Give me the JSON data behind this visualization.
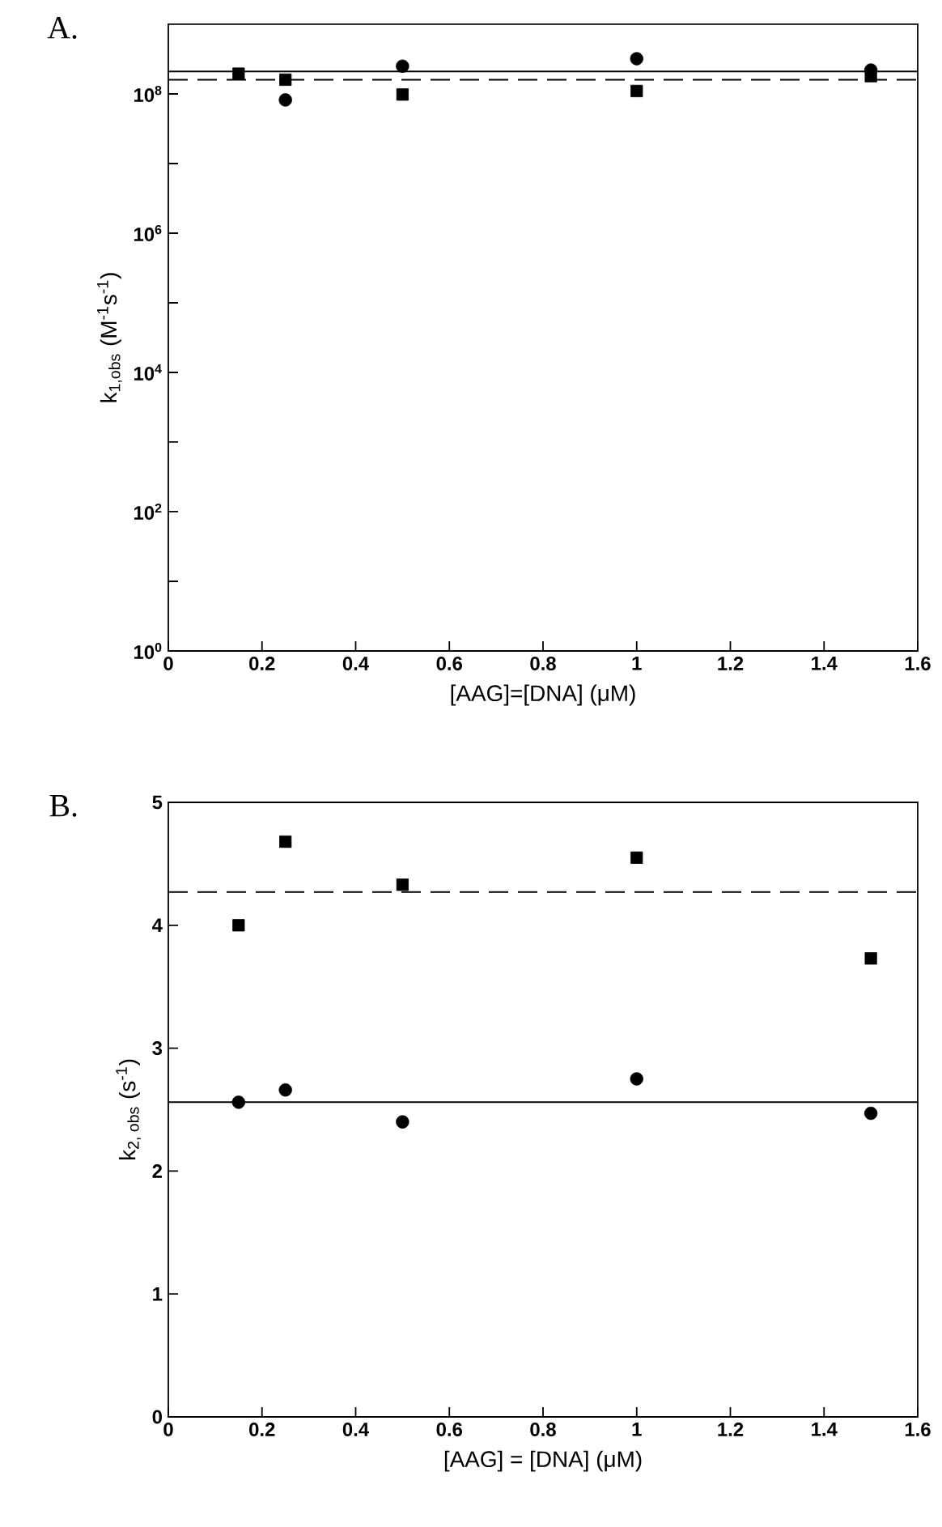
{
  "chart_data": [
    {
      "type": "scatter",
      "title": "A.",
      "xlabel": "[AAG]=[DNA] (μM)",
      "ylabel": "k$_{1,obs}$ (M$^{-1}$s$^{-1}$)",
      "log": "y",
      "xlim": [
        0,
        1.6
      ],
      "xticks": [
        0,
        0.2,
        0.4,
        0.6,
        0.8,
        1,
        1.2,
        1.4,
        1.6
      ],
      "ylim": [
        1,
        1000000000
      ],
      "yticks": [
        {
          "value": 1,
          "label": "10$^{0}$"
        },
        {
          "value": 10,
          "label": null
        },
        {
          "value": 100,
          "label": "10$^{2}$"
        },
        {
          "value": 1000,
          "label": null
        },
        {
          "value": 10000,
          "label": "10$^{4}$"
        },
        {
          "value": 100000,
          "label": null
        },
        {
          "value": 1000000,
          "label": "10$^{6}$"
        },
        {
          "value": 10000000,
          "label": null
        },
        {
          "value": 100000000,
          "label": "10$^{8}$"
        }
      ],
      "series": [
        {
          "color": "#000000",
          "marker": "square",
          "x": [
            0.15,
            0.25,
            0.5,
            1,
            1.5
          ],
          "values": [
            195000000,
            160000000,
            98000000,
            110000000,
            180000000
          ]
        },
        {
          "color": "#000000",
          "marker": "circle",
          "x": [
            0.25,
            0.5,
            1,
            1.5
          ],
          "values": [
            82000000,
            250000000,
            320000000,
            220000000
          ]
        }
      ],
      "ref_lines": [
        {
          "axis": "y",
          "value": 210000000,
          "line_style": "solid",
          "color": "#000000"
        },
        {
          "axis": "y",
          "value": 160000000,
          "line_style": "dashed",
          "color": "#000000"
        }
      ]
    },
    {
      "type": "scatter",
      "title": "B.",
      "xlabel": "[AAG] = [DNA] (μM)",
      "ylabel": "k$_{2, obs}$ (s$^{-1}$)",
      "xlim": [
        0,
        1.6
      ],
      "xticks": [
        0,
        0.2,
        0.4,
        0.6,
        0.8,
        1,
        1.2,
        1.4,
        1.6
      ],
      "ylim": [
        0,
        5
      ],
      "yticks": [
        0,
        1,
        2,
        3,
        4,
        5
      ],
      "series": [
        {
          "color": "#000000",
          "marker": "square",
          "x": [
            0.15,
            0.25,
            0.5,
            1,
            1.5
          ],
          "values": [
            4.0,
            4.68,
            4.33,
            4.55,
            3.73
          ]
        },
        {
          "color": "#000000",
          "marker": "circle",
          "x": [
            0.15,
            0.25,
            0.5,
            1,
            1.5
          ],
          "values": [
            2.56,
            2.66,
            2.4,
            2.75,
            2.47
          ]
        }
      ],
      "ref_lines": [
        {
          "axis": "y",
          "value": 2.56,
          "line_style": "solid",
          "color": "#000000"
        },
        {
          "axis": "y",
          "value": 4.27,
          "line_style": "dashed",
          "color": "#000000"
        }
      ]
    }
  ]
}
